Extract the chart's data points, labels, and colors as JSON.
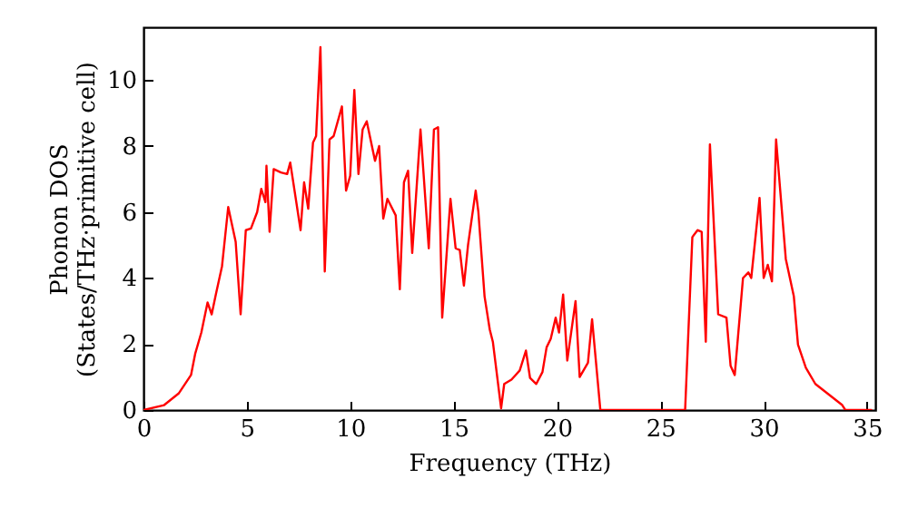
{
  "chart_data": {
    "type": "line",
    "xlabel": "Frequency (THz)",
    "ylabel": "Phonon DOS\n(States/THz·primitive cell)",
    "xlim": [
      0,
      35.4
    ],
    "ylim": [
      0,
      11.6
    ],
    "xticks": [
      0,
      5,
      10,
      15,
      20,
      25,
      30,
      35
    ],
    "yticks": [
      0,
      2,
      4,
      6,
      8,
      10
    ],
    "grid": false,
    "marker": "none",
    "line_style": "solid",
    "x": [
      0,
      1.0,
      1.7,
      2.3,
      2.5,
      2.8,
      3.1,
      3.3,
      3.5,
      3.8,
      4.1,
      4.46,
      4.7,
      4.95,
      5.2,
      5.5,
      5.7,
      5.9,
      5.95,
      6.1,
      6.3,
      6.65,
      6.95,
      7.1,
      7.6,
      7.77,
      7.97,
      8.2,
      8.35,
      8.56,
      8.77,
      9.0,
      9.2,
      9.6,
      9.8,
      10.0,
      10.2,
      10.4,
      10.6,
      10.8,
      11.2,
      11.4,
      11.6,
      11.8,
      12.2,
      12.4,
      12.6,
      12.8,
      13.0,
      13.4,
      13.8,
      14.05,
      14.25,
      14.45,
      14.85,
      15.1,
      15.3,
      15.5,
      15.7,
      16.07,
      16.2,
      16.5,
      16.75,
      16.9,
      17.3,
      17.45,
      17.8,
      18.0,
      18.2,
      18.5,
      18.7,
      19.0,
      19.3,
      19.5,
      19.7,
      19.94,
      20.1,
      20.3,
      20.5,
      20.9,
      21.1,
      21.5,
      21.7,
      22.1,
      26.2,
      26.55,
      26.8,
      27.0,
      27.2,
      27.4,
      27.8,
      28.2,
      28.4,
      28.6,
      29.0,
      29.26,
      29.4,
      29.8,
      30.0,
      30.2,
      30.4,
      30.6,
      31.07,
      31.46,
      31.66,
      32.04,
      32.5,
      33.8,
      33.95,
      35.2
    ],
    "series": [
      {
        "color": "#ff0000",
        "values": [
          0,
          0.15,
          0.5,
          1.06,
          1.7,
          2.35,
          3.26,
          2.9,
          3.5,
          4.36,
          6.15,
          5.1,
          2.9,
          5.45,
          5.5,
          6.0,
          6.7,
          6.3,
          7.4,
          5.4,
          7.3,
          7.2,
          7.15,
          7.5,
          5.45,
          6.9,
          6.1,
          8.1,
          8.3,
          11.0,
          4.2,
          8.2,
          8.3,
          9.2,
          6.65,
          7.1,
          9.7,
          7.15,
          8.5,
          8.75,
          7.55,
          8.0,
          5.8,
          6.4,
          5.9,
          3.66,
          6.9,
          7.25,
          4.76,
          8.5,
          4.9,
          8.5,
          8.57,
          2.8,
          6.4,
          4.9,
          4.85,
          3.77,
          5.0,
          6.65,
          6.0,
          3.44,
          2.44,
          2.07,
          0.05,
          0.79,
          0.92,
          1.06,
          1.2,
          1.8,
          0.97,
          0.79,
          1.15,
          1.9,
          2.16,
          2.8,
          2.35,
          3.5,
          1.5,
          3.3,
          1.0,
          1.43,
          2.75,
          0,
          0,
          5.24,
          5.45,
          5.4,
          2.07,
          8.05,
          2.9,
          2.8,
          1.34,
          1.06,
          4.0,
          4.17,
          4.0,
          6.43,
          4.0,
          4.4,
          3.9,
          8.2,
          4.58,
          3.44,
          1.98,
          1.28,
          0.79,
          0.15,
          0,
          0
        ]
      }
    ]
  }
}
